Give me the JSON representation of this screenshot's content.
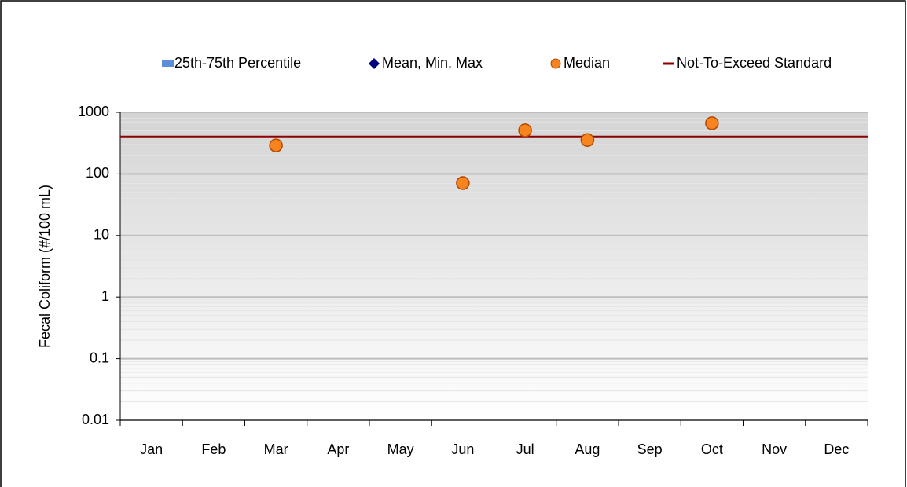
{
  "chart_data": {
    "type": "scatter",
    "y_label": "Fecal Coliform (#/100 mL)",
    "categories": [
      "Jan",
      "Feb",
      "Mar",
      "Apr",
      "May",
      "Jun",
      "Jul",
      "Aug",
      "Sep",
      "Oct",
      "Nov",
      "Dec"
    ],
    "series": [
      {
        "name": "25th-75th Percentile",
        "color": "#5b8ed6",
        "values": [
          null,
          null,
          null,
          null,
          null,
          null,
          null,
          null,
          null,
          null,
          null,
          null
        ]
      },
      {
        "name": "Mean, Min, Max",
        "color": "#000080",
        "values": [
          null,
          null,
          null,
          null,
          null,
          null,
          null,
          null,
          null,
          null,
          null,
          null
        ]
      },
      {
        "name": "Median",
        "color": "#f7841f",
        "values": [
          null,
          null,
          290,
          null,
          null,
          71,
          510,
          355,
          null,
          665,
          null,
          null
        ]
      }
    ],
    "reference_line": {
      "name": "Not-To-Exceed Standard",
      "value": 400,
      "color": "#8b0000"
    },
    "log_scale": true,
    "ylim": [
      0.01,
      1000
    ],
    "yticks": [
      0.01,
      0.1,
      1,
      10,
      100,
      1000
    ],
    "grid": true,
    "minor_grid": true,
    "legend": "top"
  }
}
